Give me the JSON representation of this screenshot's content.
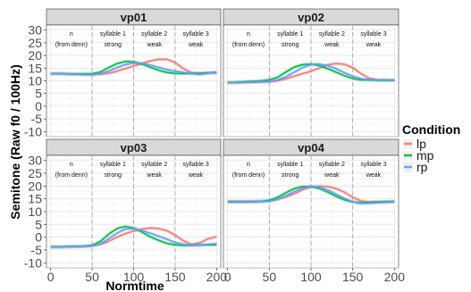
{
  "chart_data": {
    "type": "line",
    "xlabel": "Normtime",
    "ylabel": "Semitone (Raw f0 / 100Hz)",
    "xlim": [
      -5,
      205
    ],
    "ylim": [
      -12,
      32
    ],
    "x_ticks": [
      0,
      50,
      100,
      150,
      200
    ],
    "y_ticks": [
      -10,
      -5,
      0,
      5,
      10,
      15,
      20,
      25,
      30
    ],
    "boundaries": [
      50,
      100,
      150
    ],
    "segment_labels": [
      {
        "x": 25,
        "line1": "n",
        "line2": "(from denn)"
      },
      {
        "x": 75,
        "line1": "syllable 1",
        "line2": "strong"
      },
      {
        "x": 125,
        "line1": "syllable 2",
        "line2": "weak"
      },
      {
        "x": 175,
        "line1": "syllable 3",
        "line2": "weak"
      }
    ],
    "legend": {
      "title": "Condition",
      "position": "right",
      "entries": [
        {
          "label": "lp",
          "color": "#F8766D"
        },
        {
          "label": "mp",
          "color": "#00BA38"
        },
        {
          "label": "rp",
          "color": "#619CFF"
        }
      ]
    },
    "x": [
      0,
      10,
      20,
      30,
      40,
      50,
      60,
      70,
      80,
      90,
      100,
      110,
      120,
      130,
      140,
      150,
      160,
      170,
      180,
      190,
      200
    ],
    "panels": [
      {
        "name": "vp01",
        "series": [
          {
            "name": "lp",
            "values": [
              12.8,
              12.8,
              12.7,
              12.6,
              12.5,
              12.4,
              12.6,
              13.0,
              13.8,
              14.8,
              15.8,
              16.8,
              17.8,
              18.5,
              18.5,
              17.2,
              14.8,
              13.2,
              13.0,
              13.2,
              13.3
            ]
          },
          {
            "name": "mp",
            "values": [
              12.8,
              12.8,
              12.7,
              12.7,
              12.7,
              12.8,
              13.5,
              15.2,
              16.8,
              17.6,
              17.5,
              16.6,
              15.4,
              14.2,
              13.3,
              12.9,
              12.8,
              12.9,
              13.0,
              13.1,
              13.2
            ]
          },
          {
            "name": "rp",
            "values": [
              12.8,
              12.8,
              12.7,
              12.6,
              12.5,
              12.4,
              12.8,
              13.8,
              15.2,
              16.4,
              17.0,
              16.9,
              16.2,
              15.3,
              14.4,
              13.8,
              13.3,
              12.8,
              12.5,
              13.0,
              13.4
            ]
          }
        ]
      },
      {
        "name": "vp02",
        "series": [
          {
            "name": "lp",
            "values": [
              9.3,
              9.3,
              9.4,
              9.4,
              9.5,
              9.6,
              10.0,
              10.8,
              11.8,
              12.8,
              13.8,
              15.0,
              16.3,
              16.8,
              16.5,
              15.2,
              12.8,
              11.0,
              10.4,
              10.3,
              10.2
            ]
          },
          {
            "name": "mp",
            "values": [
              9.3,
              9.4,
              9.6,
              9.8,
              10.0,
              10.4,
              11.4,
              13.5,
              15.4,
              16.4,
              16.6,
              16.0,
              14.8,
              13.4,
              12.0,
              10.9,
              10.4,
              10.3,
              10.2,
              10.2,
              10.2
            ]
          },
          {
            "name": "rp",
            "values": [
              9.3,
              9.3,
              9.4,
              9.5,
              9.6,
              9.8,
              10.4,
              11.6,
              13.4,
              15.2,
              16.4,
              16.6,
              16.0,
              14.8,
              13.2,
              11.8,
              10.8,
              10.4,
              10.3,
              10.3,
              10.2
            ]
          }
        ]
      },
      {
        "name": "vp03",
        "series": [
          {
            "name": "lp",
            "values": [
              -3.8,
              -3.8,
              -3.7,
              -3.7,
              -3.6,
              -3.4,
              -2.8,
              -1.6,
              0.0,
              1.4,
              2.4,
              3.2,
              3.6,
              3.4,
              2.6,
              0.8,
              -1.4,
              -2.8,
              -2.2,
              -0.6,
              0.2
            ]
          },
          {
            "name": "mp",
            "values": [
              -3.8,
              -3.8,
              -3.7,
              -3.6,
              -3.5,
              -3.2,
              -1.6,
              1.2,
              3.4,
              4.2,
              3.6,
              2.0,
              0.2,
              -1.2,
              -2.4,
              -3.0,
              -3.2,
              -3.2,
              -3.1,
              -3.0,
              -3.0
            ]
          },
          {
            "name": "rp",
            "values": [
              -3.8,
              -3.8,
              -3.7,
              -3.6,
              -3.5,
              -3.4,
              -2.6,
              -0.6,
              1.6,
              3.2,
              3.4,
              2.6,
              1.6,
              0.4,
              -0.8,
              -2.0,
              -2.8,
              -3.1,
              -3.0,
              -2.8,
              -2.6
            ]
          }
        ]
      },
      {
        "name": "vp04",
        "series": [
          {
            "name": "lp",
            "values": [
              14.0,
              14.0,
              14.0,
              14.0,
              14.0,
              14.2,
              14.8,
              15.8,
              17.0,
              18.6,
              19.6,
              20.0,
              19.8,
              19.0,
              17.6,
              15.6,
              14.2,
              13.8,
              13.8,
              13.8,
              13.9
            ]
          },
          {
            "name": "mp",
            "values": [
              13.8,
              13.8,
              13.8,
              13.9,
              14.0,
              14.4,
              15.6,
              17.4,
              19.0,
              19.8,
              19.8,
              19.0,
              17.6,
              16.0,
              14.6,
              13.8,
              13.5,
              13.6,
              13.8,
              13.9,
              14.0
            ]
          },
          {
            "name": "rp",
            "values": [
              13.8,
              13.8,
              13.8,
              13.8,
              13.9,
              14.1,
              14.8,
              16.2,
              17.8,
              19.2,
              19.9,
              19.6,
              18.4,
              16.8,
              15.2,
              13.8,
              13.2,
              13.3,
              13.5,
              13.7,
              13.8
            ]
          }
        ]
      }
    ]
  }
}
